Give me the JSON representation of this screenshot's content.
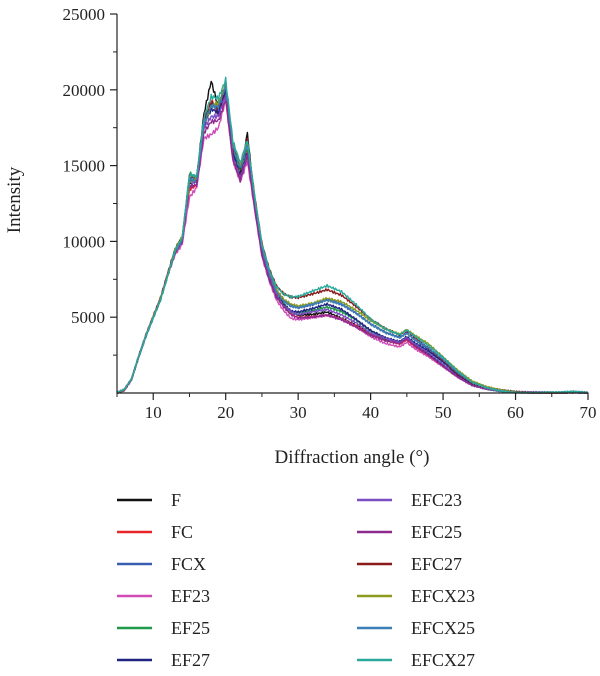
{
  "chart_data": {
    "type": "line",
    "xlabel": "Diffraction angle (°)",
    "ylabel": "Intensity",
    "xlim": [
      5,
      70
    ],
    "ylim": [
      0,
      25000
    ],
    "x_ticks": [
      10,
      20,
      30,
      40,
      50,
      60,
      70
    ],
    "y_ticks": [
      5000,
      10000,
      15000,
      20000,
      25000
    ],
    "grid": false,
    "legend_position": "bottom",
    "x": [
      5,
      6,
      7,
      8,
      9,
      10,
      11,
      12,
      13,
      14,
      15,
      16,
      17,
      18,
      19,
      20,
      21,
      22,
      23,
      24,
      25,
      26,
      27,
      28,
      29,
      30,
      32,
      34,
      36,
      38,
      40,
      42,
      44,
      45,
      46,
      48,
      50,
      52,
      54,
      56,
      58,
      60,
      62,
      64,
      66,
      68,
      70
    ],
    "series": [
      {
        "name": "F",
        "color": "#111111",
        "values": [
          0,
          200,
          900,
          2400,
          3800,
          5000,
          6200,
          7800,
          9400,
          10200,
          13800,
          14200,
          18500,
          20700,
          19000,
          20500,
          16000,
          14500,
          17200,
          12500,
          9500,
          7800,
          6500,
          5800,
          5300,
          5100,
          5200,
          5400,
          5000,
          4500,
          3900,
          3500,
          3300,
          3600,
          3200,
          2600,
          1900,
          1200,
          600,
          300,
          150,
          50,
          20,
          10,
          10,
          50,
          0
        ]
      },
      {
        "name": "FC",
        "color": "#e8262a",
        "values": [
          0,
          200,
          900,
          2400,
          3800,
          5000,
          6200,
          7800,
          9300,
          10000,
          13500,
          13800,
          17500,
          19500,
          18500,
          19800,
          15500,
          14200,
          15800,
          12300,
          9200,
          7600,
          6400,
          5700,
          5200,
          5000,
          5100,
          5200,
          4900,
          4400,
          3800,
          3400,
          3200,
          3500,
          3100,
          2500,
          1800,
          1100,
          550,
          280,
          140,
          50,
          20,
          10,
          10,
          50,
          0
        ]
      },
      {
        "name": "FCX",
        "color": "#3a5fb0",
        "values": [
          0,
          200,
          900,
          2400,
          3800,
          5000,
          6200,
          7800,
          9300,
          10100,
          14200,
          14000,
          17800,
          19200,
          18700,
          20200,
          16200,
          14800,
          16500,
          12700,
          9600,
          7900,
          6700,
          6100,
          5800,
          5700,
          5900,
          6200,
          5800,
          5200,
          4500,
          4000,
          3700,
          4000,
          3600,
          2900,
          2100,
          1300,
          650,
          330,
          160,
          60,
          25,
          15,
          15,
          60,
          0
        ]
      },
      {
        "name": "EF23",
        "color": "#d04bb8",
        "values": [
          0,
          200,
          900,
          2400,
          3800,
          5000,
          6200,
          7800,
          9200,
          9900,
          13000,
          13600,
          16800,
          17000,
          17400,
          19200,
          15200,
          13800,
          15200,
          12000,
          9000,
          7400,
          6200,
          5500,
          5000,
          4900,
          5000,
          5100,
          4800,
          4300,
          3700,
          3300,
          3100,
          3400,
          3000,
          2400,
          1700,
          1000,
          500,
          260,
          130,
          50,
          20,
          10,
          10,
          40,
          0
        ]
      },
      {
        "name": "EF25",
        "color": "#1f9a4a",
        "values": [
          0,
          200,
          900,
          2400,
          3800,
          5000,
          6200,
          7800,
          9300,
          10100,
          14500,
          14100,
          18000,
          18800,
          18900,
          20100,
          16000,
          14600,
          16200,
          12600,
          9400,
          7700,
          6500,
          5900,
          5400,
          5300,
          5400,
          5600,
          5300,
          4800,
          4100,
          3700,
          3400,
          3700,
          3300,
          2700,
          2000,
          1200,
          600,
          300,
          150,
          60,
          25,
          15,
          15,
          60,
          0
        ]
      },
      {
        "name": "EF27",
        "color": "#1f2580",
        "values": [
          0,
          200,
          900,
          2400,
          3800,
          5000,
          6200,
          7800,
          9300,
          10000,
          14000,
          13900,
          17600,
          18600,
          18400,
          19900,
          15800,
          14400,
          16000,
          12400,
          9300,
          7600,
          6400,
          5800,
          5400,
          5300,
          5500,
          5800,
          5500,
          4900,
          4200,
          3700,
          3400,
          3700,
          3300,
          2700,
          2000,
          1200,
          600,
          300,
          150,
          60,
          25,
          15,
          15,
          60,
          0
        ]
      },
      {
        "name": "EFC23",
        "color": "#7b4fc4",
        "values": [
          0,
          200,
          900,
          2400,
          3800,
          5000,
          6200,
          7800,
          9300,
          10000,
          13800,
          13900,
          17400,
          18200,
          18300,
          19700,
          15700,
          14300,
          15900,
          12400,
          9300,
          7600,
          6400,
          5700,
          5300,
          5100,
          5300,
          5500,
          5200,
          4700,
          4000,
          3600,
          3300,
          3600,
          3200,
          2600,
          1900,
          1100,
          550,
          280,
          140,
          50,
          20,
          10,
          10,
          50,
          0
        ]
      },
      {
        "name": "EFC25",
        "color": "#8e2a8e",
        "values": [
          0,
          200,
          900,
          2400,
          3800,
          5000,
          6200,
          7800,
          9200,
          9900,
          13600,
          13700,
          17200,
          18000,
          18100,
          19500,
          15500,
          14100,
          15700,
          12200,
          9100,
          7500,
          6300,
          5600,
          5100,
          4900,
          5000,
          5200,
          4900,
          4400,
          3800,
          3400,
          3200,
          3500,
          3100,
          2500,
          1800,
          1100,
          520,
          270,
          130,
          50,
          20,
          10,
          10,
          50,
          0
        ]
      },
      {
        "name": "EFC27",
        "color": "#8b1a1a",
        "values": [
          0,
          200,
          900,
          2400,
          3800,
          5000,
          6200,
          7800,
          9400,
          10200,
          14300,
          14200,
          18200,
          19300,
          19000,
          20300,
          16300,
          14900,
          16600,
          12900,
          9800,
          8100,
          7000,
          6500,
          6300,
          6300,
          6600,
          6900,
          6500,
          5700,
          4800,
          4200,
          3800,
          4100,
          3700,
          3000,
          2200,
          1300,
          650,
          330,
          160,
          60,
          25,
          15,
          15,
          60,
          0
        ]
      },
      {
        "name": "EFCX23",
        "color": "#8c9a1e",
        "values": [
          0,
          200,
          900,
          2400,
          3800,
          5000,
          6200,
          7800,
          9500,
          10400,
          14000,
          14300,
          17900,
          19000,
          19200,
          20300,
          16400,
          15000,
          16400,
          12800,
          9700,
          8000,
          6800,
          6200,
          5900,
          5800,
          6000,
          6300,
          6000,
          5400,
          4700,
          4200,
          3900,
          4200,
          3900,
          3300,
          2400,
          1500,
          750,
          380,
          180,
          70,
          30,
          15,
          15,
          70,
          0
        ]
      },
      {
        "name": "EFCX25",
        "color": "#3c7fb8",
        "values": [
          0,
          200,
          900,
          2400,
          3800,
          5000,
          6200,
          7800,
          9400,
          10200,
          14200,
          14100,
          17800,
          18900,
          18800,
          20100,
          16100,
          14700,
          16300,
          12700,
          9600,
          7900,
          6700,
          6100,
          5800,
          5700,
          5900,
          6100,
          5800,
          5200,
          4500,
          4000,
          3700,
          4000,
          3600,
          3000,
          2200,
          1300,
          650,
          330,
          160,
          60,
          25,
          15,
          15,
          60,
          0
        ]
      },
      {
        "name": "EFCX27",
        "color": "#2aa89a",
        "values": [
          0,
          200,
          900,
          2400,
          3800,
          5000,
          6200,
          7800,
          9500,
          10300,
          14400,
          14300,
          18100,
          19400,
          19300,
          20500,
          16500,
          15100,
          16700,
          13000,
          9900,
          8200,
          7100,
          6600,
          6400,
          6400,
          6700,
          7000,
          6600,
          5800,
          4900,
          4300,
          3900,
          4200,
          3800,
          3100,
          2300,
          1400,
          700,
          350,
          170,
          70,
          30,
          15,
          15,
          70,
          0
        ]
      }
    ]
  }
}
